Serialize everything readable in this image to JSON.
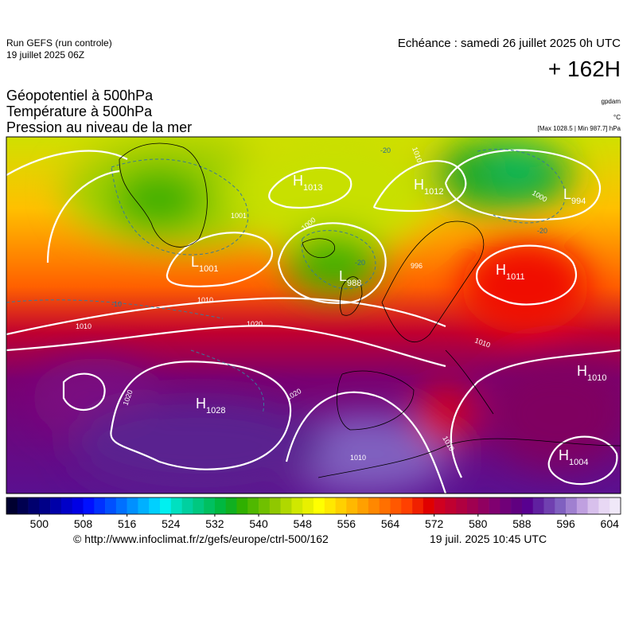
{
  "header": {
    "run": "Run GEFS (run controle)",
    "run_date": "19 juillet 2025 06Z",
    "valid": "Echéance : samedi 26 juillet 2025 0h UTC",
    "lead": "+ 162H"
  },
  "fields": [
    "Géopotentiel à 500hPa",
    "Température à 500hPa",
    "Pression au niveau de la mer"
  ],
  "units": [
    "gpdam",
    "°C",
    "[Max 1028.5 | Min 987.7] hPa"
  ],
  "pressure_centers": [
    {
      "type": "L",
      "value": 1001
    },
    {
      "type": "H",
      "value": 1013
    },
    {
      "type": "H",
      "value": 1012
    },
    {
      "type": "L",
      "value": 994
    },
    {
      "type": "L",
      "value": 988
    },
    {
      "type": "H",
      "value": 1011
    },
    {
      "type": "H",
      "value": 1010
    },
    {
      "type": "H",
      "value": 1028
    },
    {
      "type": "H",
      "value": 1004
    }
  ],
  "isobar_labels": [
    1010,
    1020,
    1020,
    1020,
    1010,
    1010,
    1010,
    1000,
    1000,
    1010,
    1010,
    1001,
    996
  ],
  "temperature_labels": [
    -20,
    -20,
    -20,
    -10
  ],
  "colorbar": {
    "lim": [
      494,
      606
    ],
    "ticks": [
      500,
      508,
      516,
      524,
      532,
      540,
      548,
      556,
      564,
      572,
      580,
      588,
      596,
      604
    ],
    "colors": [
      "#000030",
      "#000050",
      "#00006e",
      "#000088",
      "#0000a8",
      "#0000c8",
      "#0000e4",
      "#0010ff",
      "#0030ff",
      "#0050ff",
      "#0070ff",
      "#0090ff",
      "#00b0ff",
      "#00d0ff",
      "#00f0f0",
      "#00e0c0",
      "#00d0a0",
      "#00c880",
      "#00c060",
      "#00b840",
      "#10b020",
      "#30b000",
      "#50b800",
      "#70c000",
      "#90c800",
      "#b0d800",
      "#d0e800",
      "#e8f000",
      "#ffff00",
      "#ffe800",
      "#ffd000",
      "#ffb800",
      "#ffa000",
      "#ff8800",
      "#ff7000",
      "#ff5800",
      "#ff4000",
      "#f02000",
      "#e00000",
      "#d00020",
      "#c00030",
      "#b00040",
      "#a00050",
      "#900060",
      "#800070",
      "#700078",
      "#600080",
      "#580090",
      "#6020a0",
      "#7040b0",
      "#8060c0",
      "#a080d0",
      "#c0a0e0",
      "#d8c0ec",
      "#e8d8f4",
      "#f0e8f8"
    ]
  },
  "footer": {
    "source": "© http://www.infoclimat.fr/z/gefs/europe/ctrl-500/162",
    "issued": "19 juil. 2025 10:45 UTC"
  }
}
